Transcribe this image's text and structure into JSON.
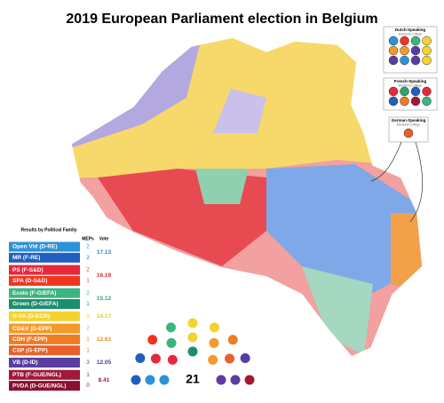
{
  "title": "2019 European Parliament election in Belgium",
  "legend": {
    "title": "Results by Political Family",
    "meps_header": "MEPs",
    "vote_header": "Vote",
    "families": [
      {
        "vote": "17.13",
        "vote_color": "#2c7fd0",
        "parties": [
          {
            "name": "Open Vld (D-RE)",
            "meps": 2,
            "color": "#2c92d8"
          },
          {
            "name": "MR (F-RE)",
            "meps": 2,
            "color": "#1f5fbf"
          }
        ]
      },
      {
        "vote": "16.19",
        "vote_color": "#e0262f",
        "parties": [
          {
            "name": "PS (F-S&D)",
            "meps": 2,
            "color": "#e8283a"
          },
          {
            "name": "SPA (D-S&D)",
            "meps": 1,
            "color": "#f0351e"
          }
        ]
      },
      {
        "vote": "15.12",
        "vote_color": "#2aa56e",
        "parties": [
          {
            "name": "Ecolo (F-G/EFA)",
            "meps": 2,
            "color": "#3bb57f"
          },
          {
            "name": "Groen (D-G/EFA)",
            "meps": 1,
            "color": "#1a8f6e"
          }
        ]
      },
      {
        "vote": "14.17",
        "vote_color": "#e8c520",
        "parties": [
          {
            "name": "N-VA (D-ECR)",
            "meps": 3,
            "color": "#f5d22e"
          }
        ]
      },
      {
        "vote": "12.63",
        "vote_color": "#ee8a20",
        "parties": [
          {
            "name": "CD&V (D-EPP)",
            "meps": 2,
            "color": "#f39a2b"
          },
          {
            "name": "CDH (F-EPP)",
            "meps": 1,
            "color": "#f07d22"
          },
          {
            "name": "CSP (G-EPP)",
            "meps": 1,
            "color": "#e8602a"
          }
        ]
      },
      {
        "vote": "12.05",
        "vote_color": "#4a3a9a",
        "parties": [
          {
            "name": "VB (D-ID)",
            "meps": 3,
            "color": "#5a3da0"
          }
        ]
      },
      {
        "vote": "8.41",
        "vote_color": "#a0182f",
        "parties": [
          {
            "name": "PTB (F-GUE/NGL)",
            "meps": 1,
            "color": "#a01838"
          },
          {
            "name": "PVDA (D-GUE/NGL)",
            "meps": 0,
            "color": "#8b1030"
          }
        ]
      }
    ]
  },
  "seats_total": 21,
  "colleges": [
    {
      "name": "Dutch-Speaking",
      "sub": "Electoral College"
    },
    {
      "name": "French-Speaking",
      "sub": "Electoral College"
    },
    {
      "name": "German-Speaking",
      "sub": "Electoral College"
    }
  ]
}
